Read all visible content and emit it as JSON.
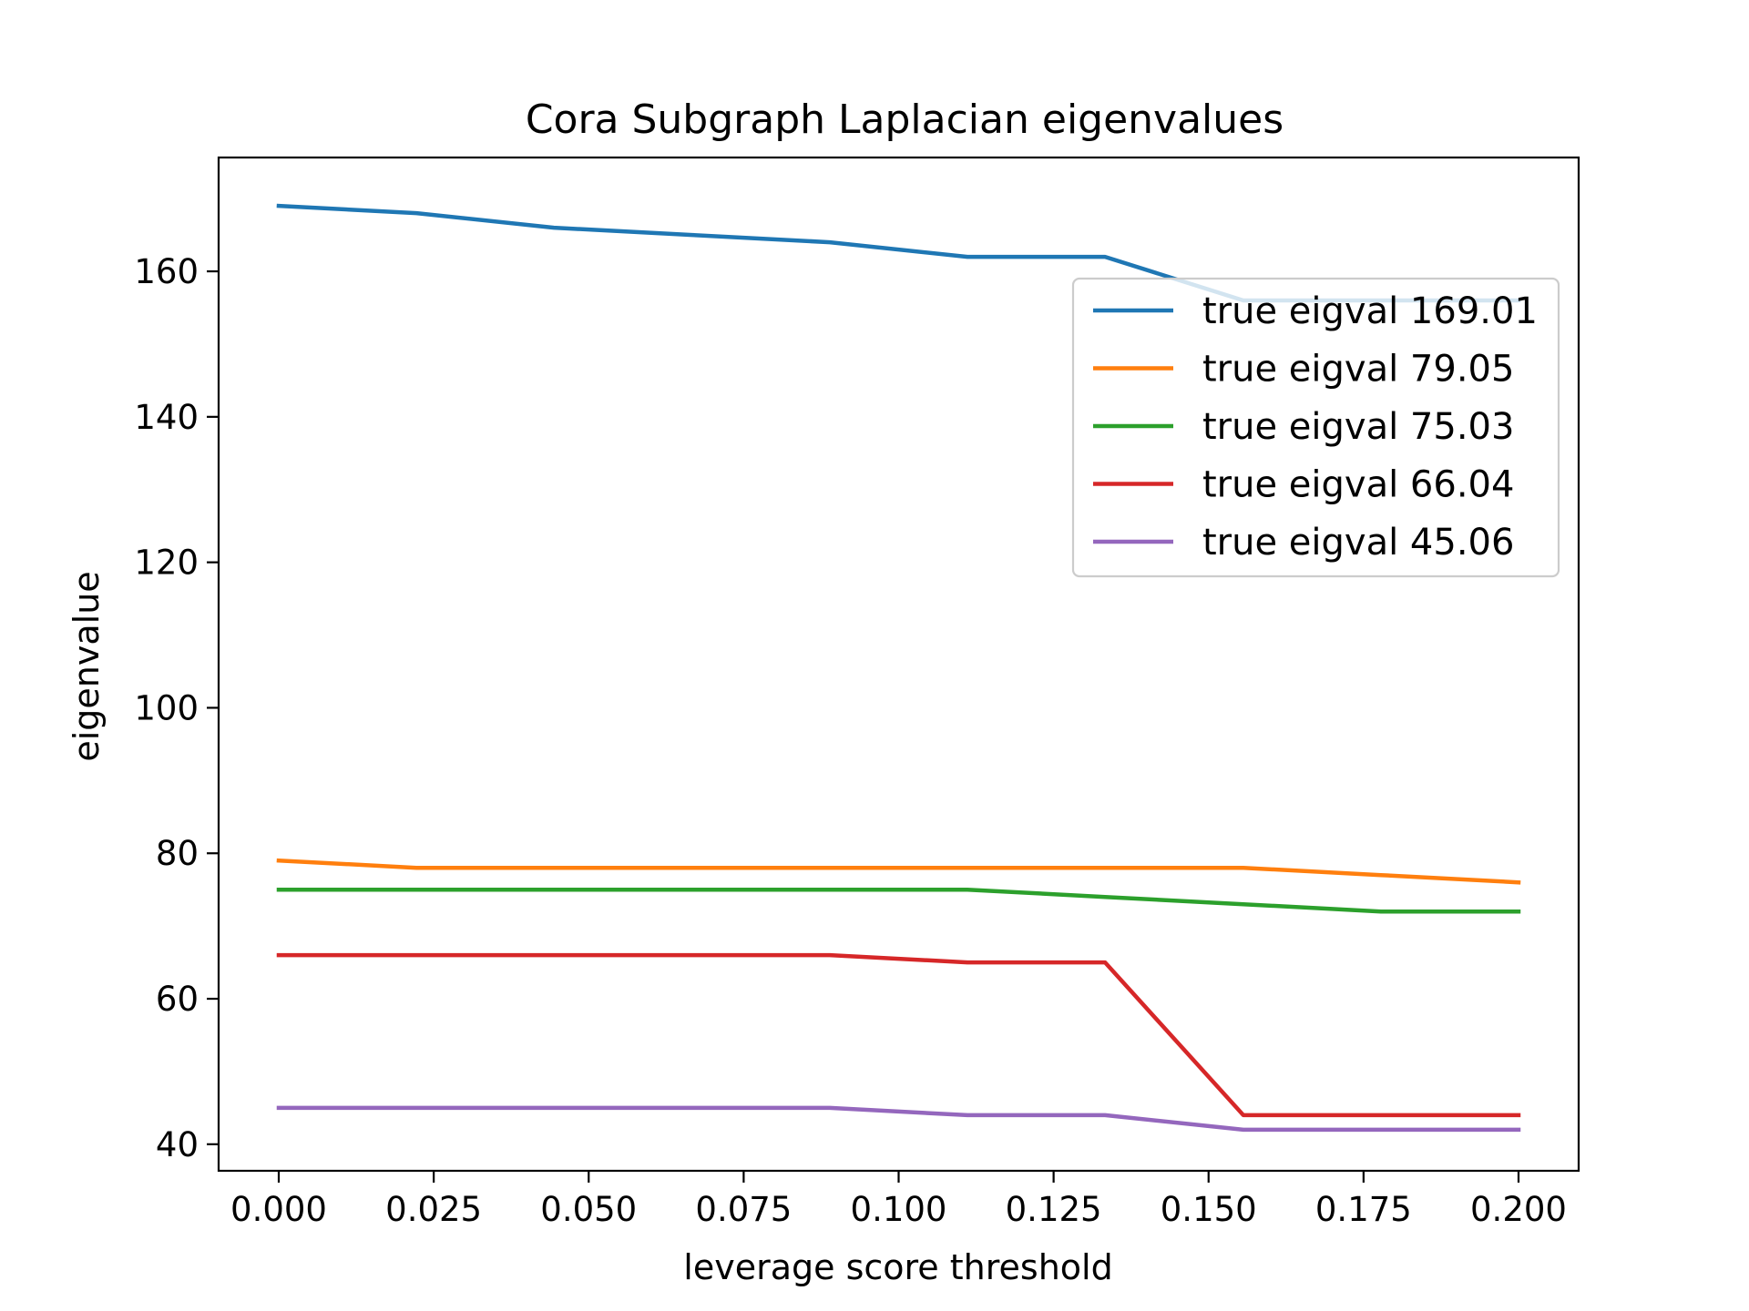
{
  "chart_data": {
    "type": "line",
    "title": "Cora Subgraph Laplacian eigenvalues",
    "xlabel": "leverage score threshold",
    "ylabel": "eigenvalue",
    "xlim": [
      -0.0097,
      0.2097
    ],
    "ylim": [
      36.35,
      175.65
    ],
    "xticks": [
      0.0,
      0.025,
      0.05,
      0.075,
      0.1,
      0.125,
      0.15,
      0.175,
      0.2
    ],
    "xtick_labels": [
      "0.000",
      "0.025",
      "0.050",
      "0.075",
      "0.100",
      "0.125",
      "0.150",
      "0.175",
      "0.200"
    ],
    "yticks": [
      40,
      60,
      80,
      100,
      120,
      140,
      160
    ],
    "ytick_labels": [
      "40",
      "60",
      "80",
      "100",
      "120",
      "140",
      "160"
    ],
    "grid": false,
    "legend_position": "upper right",
    "x": [
      0.0,
      0.0222,
      0.0444,
      0.0667,
      0.0889,
      0.1111,
      0.1333,
      0.1556,
      0.1778,
      0.2
    ],
    "series": [
      {
        "name": "true eigval 169.01",
        "color": "#1f77b4",
        "values": [
          169,
          168,
          166,
          165,
          164,
          162,
          162,
          156,
          156,
          156
        ]
      },
      {
        "name": "true eigval 79.05",
        "color": "#ff7f0e",
        "values": [
          79,
          78,
          78,
          78,
          78,
          78,
          78,
          78,
          77,
          76
        ]
      },
      {
        "name": "true eigval 75.03",
        "color": "#2ca02c",
        "values": [
          75,
          75,
          75,
          75,
          75,
          75,
          74,
          73,
          72,
          72
        ]
      },
      {
        "name": "true eigval 66.04",
        "color": "#d62728",
        "values": [
          66,
          66,
          66,
          66,
          66,
          65,
          65,
          44,
          44,
          44
        ]
      },
      {
        "name": "true eigval 45.06",
        "color": "#9467bd",
        "values": [
          45,
          45,
          45,
          45,
          45,
          44,
          44,
          42,
          42,
          42
        ]
      }
    ]
  }
}
